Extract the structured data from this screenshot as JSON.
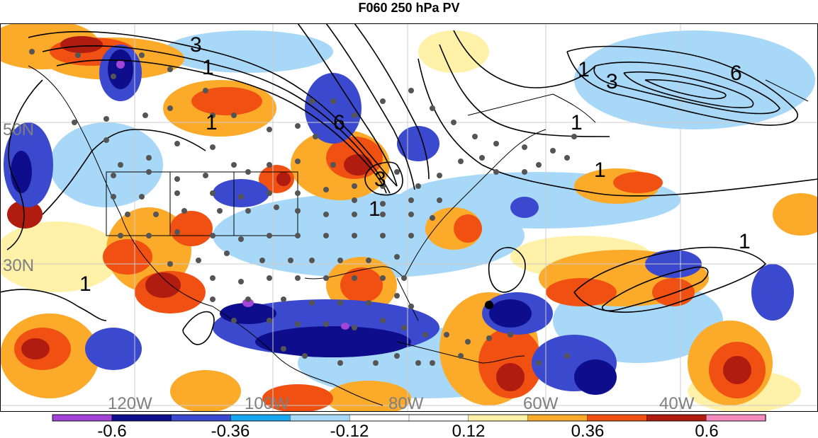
{
  "title": "F060 250 hPa PV",
  "lat_labels": [
    "50N",
    "30N"
  ],
  "lon_labels": [
    "120W",
    "100W",
    "80W",
    "60W",
    "40W"
  ],
  "contour_labels": [
    "3",
    "1",
    "1",
    "1",
    "6",
    "3",
    "3",
    "1",
    "1",
    "6",
    "1",
    "1",
    "1"
  ],
  "colorbar": {
    "tick_labels": [
      "-0.6",
      "-0.36",
      "-0.12",
      "0.12",
      "0.36",
      "0.6"
    ],
    "colors": [
      "#a245d6",
      "#0e0e8c",
      "#3a49cd",
      "#18a6ee",
      "#a8d8f8",
      "#ffffff",
      "#ffffff",
      "#fff2a8",
      "#fcaa2a",
      "#f05012",
      "#b01c10",
      "#f28cbe"
    ]
  },
  "colors": {
    "strong_negative": "#0e0e8c",
    "negative": "#3a49cd",
    "weak_negative": "#18a6ee",
    "faint_negative": "#a8d8f8",
    "faint_positive": "#fff2a8",
    "weak_positive": "#fcaa2a",
    "positive": "#f05012",
    "strong_positive": "#b01c10",
    "extreme_negative": "#a245d6",
    "extreme_positive": "#f28cbe",
    "station_dot": "#555555",
    "contour": "#000000",
    "grid": "#cccccc"
  }
}
